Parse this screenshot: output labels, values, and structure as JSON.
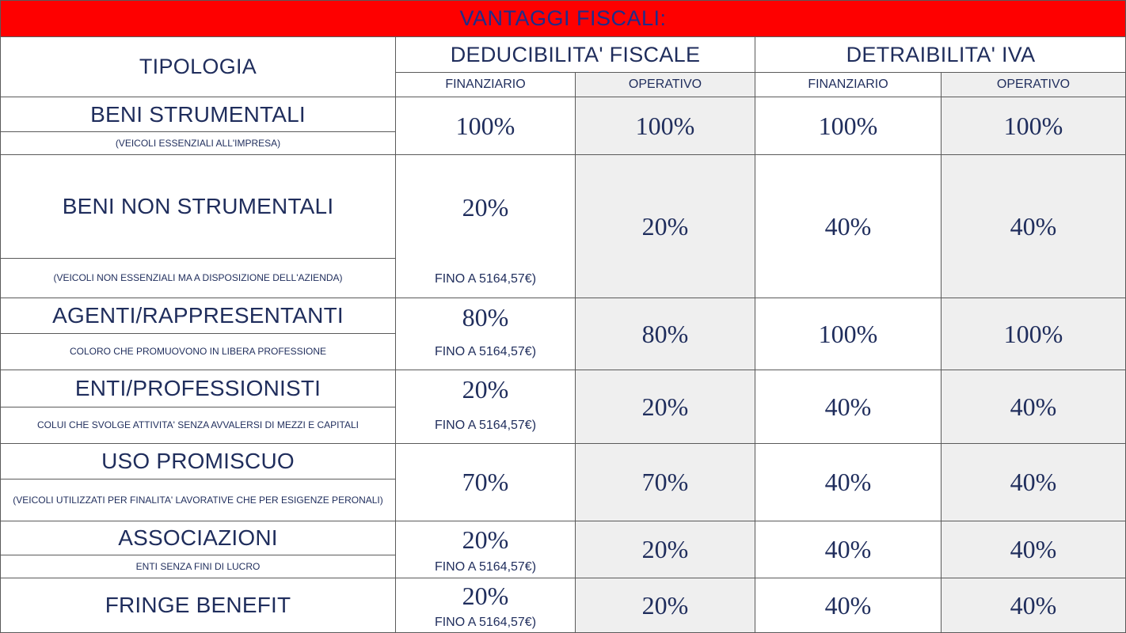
{
  "title": "VANTAGGI FISCALI:",
  "header": {
    "tipologia": "TIPOLOGIA",
    "deducibilita": "DEDUCIBILITA' FISCALE",
    "detraibilita": "DETRAIBILITA' IVA",
    "finanziario": "FINANZIARIO",
    "operativo": "OPERATIVO"
  },
  "rows": [
    {
      "category": "BENI STRUMENTALI",
      "description": "(VEICOLI ESSENZIALI ALL'IMPRESA)",
      "ded_fin": "100%",
      "ded_fin_note": "",
      "ded_op": "100%",
      "det_fin": "100%",
      "det_op": "100%"
    },
    {
      "category": "BENI NON STRUMENTALI",
      "description": "(VEICOLI NON ESSENZIALI MA A DISPOSIZIONE DELL'AZIENDA)",
      "ded_fin": "20%",
      "ded_fin_note": "FINO A 5164,57€)",
      "ded_op": "20%",
      "det_fin": "40%",
      "det_op": "40%"
    },
    {
      "category": "AGENTI/RAPPRESENTANTI",
      "description": "COLORO CHE PROMUOVONO IN LIBERA PROFESSIONE",
      "ded_fin": "80%",
      "ded_fin_note": "FINO A 5164,57€)",
      "ded_op": "80%",
      "det_fin": "100%",
      "det_op": "100%"
    },
    {
      "category": "ENTI/PROFESSIONISTI",
      "description": "COLUI CHE SVOLGE ATTIVITA' SENZA AVVALERSI DI MEZZI E CAPITALI",
      "ded_fin": "20%",
      "ded_fin_note": "FINO A 5164,57€)",
      "ded_op": "20%",
      "det_fin": "40%",
      "det_op": "40%"
    },
    {
      "category": "USO PROMISCUO",
      "description": "(VEICOLI UTILIZZATI PER FINALITA' LAVORATIVE CHE PER ESIGENZE PERONALI)",
      "ded_fin": "70%",
      "ded_fin_note": "",
      "ded_op": "70%",
      "det_fin": "40%",
      "det_op": "40%"
    },
    {
      "category": "ASSOCIAZIONI",
      "description": "ENTI SENZA FINI DI LUCRO",
      "ded_fin": "20%",
      "ded_fin_note": "FINO A 5164,57€)",
      "ded_op": "20%",
      "det_fin": "40%",
      "det_op": "40%"
    },
    {
      "category": "FRINGE BENEFIT",
      "description": "",
      "ded_fin": "20%",
      "ded_fin_note": "FINO A 5164,57€)",
      "ded_op": "20%",
      "det_fin": "40%",
      "det_op": "40%"
    }
  ]
}
